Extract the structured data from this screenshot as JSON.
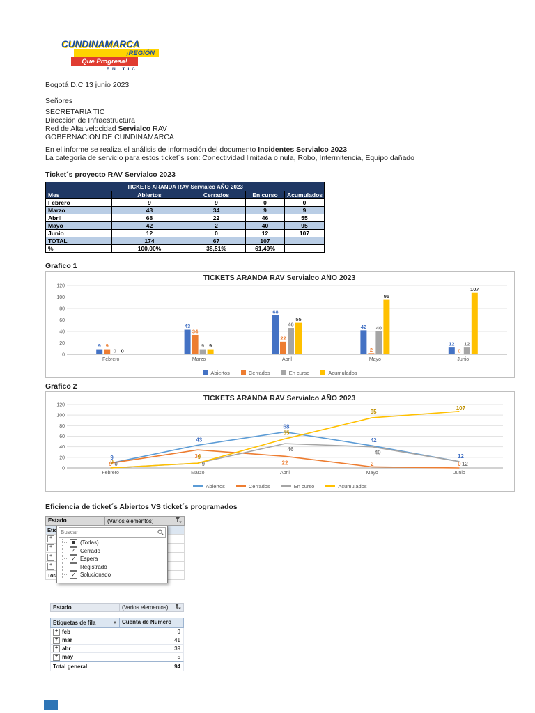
{
  "colors": {
    "table_header_bg": "#1F3864",
    "table_row_shade": "#B9CDE5",
    "pivot_header_bg": "#DCE6F1",
    "footer_mark": "#2E75B6",
    "logo_blue": "#1C4F9C",
    "logo_yellow": "#FFD400",
    "logo_red": "#E03C31"
  },
  "logo": {
    "line1": "CUNDINAMARCA",
    "line2": "¡REGIÓN",
    "line3": "Que Progresa!",
    "line4": "EN TIC"
  },
  "letter": {
    "date": "Bogotá D.C 13 junio 2023",
    "salutation": "Señores",
    "recipient": {
      "line1": "SECRETARIA TIC",
      "line2": "Dirección de Infraestructura",
      "line3_pre": "Red de Alta velocidad ",
      "line3_bold": "Servialco",
      "line3_post": " RAV",
      "line4": "GOBERNACION DE CUNDINAMARCA"
    },
    "intro_pre": "En el informe se realiza el análisis de información del documento ",
    "intro_bold": "Incidentes Servialco 2023",
    "intro_line2": "La categoría de servicio para estos ticket´s son:  Conectividad limitada o nula, Robo,  Intermitencia, Equipo dañado"
  },
  "section_titles": {
    "tickets_heading": "Ticket´s  proyecto RAV Servialco  2023",
    "grafico1": "Grafico 1",
    "grafico2": "Grafico 2",
    "eficiencia": "Eficiencia de ticket´s Abiertos VS ticket´s programados"
  },
  "summary_table": {
    "title": "TICKETS ARANDA RAV Servialco AÑO 2023",
    "columns": [
      "Mes",
      "Abiertos",
      "Cerrados",
      "En curso",
      "Acumulados"
    ],
    "rows": [
      {
        "cells": [
          "Febrero",
          "9",
          "9",
          "0",
          "0"
        ],
        "shaded": false
      },
      {
        "cells": [
          "Marzo",
          "43",
          "34",
          "9",
          "9"
        ],
        "shaded": true
      },
      {
        "cells": [
          "Abril",
          "68",
          "22",
          "46",
          "55"
        ],
        "shaded": false
      },
      {
        "cells": [
          "Mayo",
          "42",
          "2",
          "40",
          "95"
        ],
        "shaded": true
      },
      {
        "cells": [
          "Junio",
          "12",
          "0",
          "12",
          "107"
        ],
        "shaded": false
      },
      {
        "cells": [
          "TOTAL",
          "174",
          "67",
          "107",
          ""
        ],
        "shaded": true
      },
      {
        "cells": [
          "%",
          "100,00%",
          "38,51%",
          "61,49%",
          ""
        ],
        "shaded": false
      }
    ]
  },
  "chart_data": [
    {
      "type": "bar",
      "title": "TICKETS ARANDA RAV Servialco AÑO 2023",
      "categories": [
        "Febrero",
        "Marzo",
        "Abril",
        "Mayo",
        "Junio"
      ],
      "series": [
        {
          "name": "Abiertos",
          "color": "#4472C4",
          "label_color": "#4472C4",
          "values": [
            9,
            43,
            68,
            42,
            12
          ]
        },
        {
          "name": "Cerrados",
          "color": "#ED7D31",
          "label_color": "#ED7D31",
          "values": [
            9,
            34,
            22,
            2,
            0
          ]
        },
        {
          "name": "En curso",
          "color": "#A5A5A5",
          "label_color": "#7F7F7F",
          "values": [
            0,
            9,
            46,
            40,
            12
          ]
        },
        {
          "name": "Acumulados",
          "color": "#FFC000",
          "label_color": "#404040",
          "values": [
            0,
            9,
            55,
            95,
            107
          ]
        }
      ],
      "xlabel": "",
      "ylabel": "",
      "ylim": [
        0,
        120
      ],
      "ytick_step": 20,
      "grid": true,
      "legend_position": "bottom"
    },
    {
      "type": "line",
      "title": "TICKETS ARANDA RAV Servialco AÑO 2023",
      "categories": [
        "Febrero",
        "Marzo",
        "Abril",
        "Mayo",
        "Junio"
      ],
      "series": [
        {
          "name": "Abiertos",
          "color": "#5B9BD5",
          "label_color": "#4472C4",
          "values": [
            9,
            43,
            68,
            42,
            12
          ]
        },
        {
          "name": "Cerrados",
          "color": "#ED7D31",
          "label_color": "#ED7D31",
          "values": [
            9,
            34,
            22,
            2,
            0
          ]
        },
        {
          "name": "En curso",
          "color": "#A5A5A5",
          "label_color": "#7F7F7F",
          "values": [
            0,
            9,
            46,
            40,
            12
          ]
        },
        {
          "name": "Acumulados",
          "color": "#FFC000",
          "label_color": "#BF9000",
          "values": [
            0,
            9,
            55,
            95,
            107
          ]
        }
      ],
      "xlabel": "",
      "ylabel": "",
      "ylim": [
        0,
        120
      ],
      "ytick_step": 20,
      "grid": true,
      "legend_position": "bottom"
    }
  ],
  "filter_widget": {
    "field_label": "Estado",
    "field_value": "(Varios elementos)",
    "search_placeholder": "Buscar",
    "options": [
      {
        "label": "(Todas)",
        "state": "partial"
      },
      {
        "label": "Cerrado",
        "state": "checked"
      },
      {
        "label": "Espera",
        "state": "checked"
      },
      {
        "label": "Registrado",
        "state": "unchecked"
      },
      {
        "label": "Solucionado",
        "state": "checked"
      }
    ]
  },
  "pivot_table": {
    "filter_label": "Estado",
    "filter_value": "(Varios elementos)",
    "row_header": "Etiquetas de fila",
    "value_header": "Cuenta de Numero",
    "rows": [
      {
        "label": "feb",
        "value": "9"
      },
      {
        "label": "mar",
        "value": "41"
      },
      {
        "label": "abr",
        "value": "39"
      },
      {
        "label": "may",
        "value": "5"
      }
    ],
    "total_label": "Total general",
    "total_value": "94"
  }
}
